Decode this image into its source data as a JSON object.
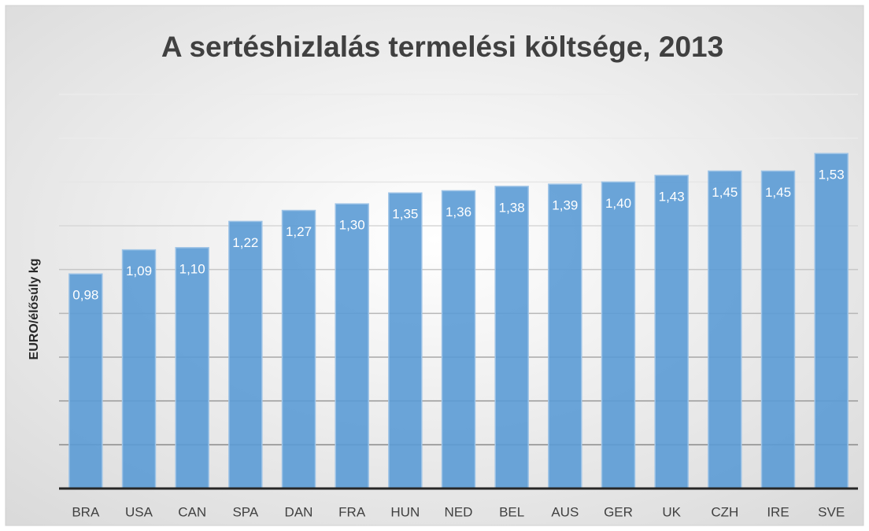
{
  "chart_data": {
    "type": "bar",
    "title": "A sertéshizlalás termelési költsége, 2013",
    "y_label": "EURO/élősúly kg",
    "categories": [
      "BRA",
      "USA",
      "CAN",
      "SPA",
      "DAN",
      "FRA",
      "HUN",
      "NED",
      "BEL",
      "AUS",
      "GER",
      "UK",
      "CZH",
      "IRE",
      "SVE"
    ],
    "values": [
      0.98,
      1.09,
      1.1,
      1.22,
      1.27,
      1.3,
      1.35,
      1.36,
      1.38,
      1.39,
      1.4,
      1.43,
      1.45,
      1.45,
      1.53
    ],
    "value_labels": [
      "0,98",
      "1,09",
      "1,10",
      "1,22",
      "1,27",
      "1,30",
      "1,35",
      "1,36",
      "1,38",
      "1,39",
      "1,40",
      "1,43",
      "1,45",
      "1,45",
      "1,53"
    ],
    "color": "#5b9bd5",
    "ylim": [
      0,
      1.8
    ],
    "yticks": [
      0,
      0.2,
      0.4,
      0.6,
      0.8,
      1.0,
      1.2,
      1.4,
      1.6,
      1.8
    ],
    "grid": true
  }
}
